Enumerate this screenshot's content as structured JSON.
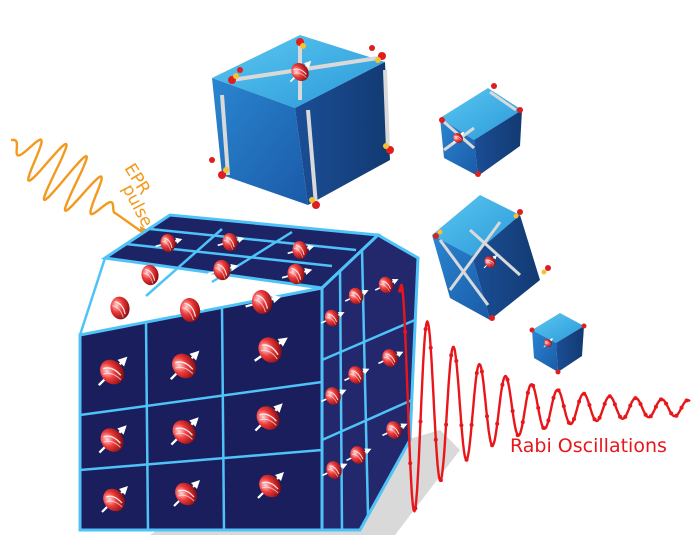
{
  "labels": {
    "epr_line1": "EPR",
    "epr_line2": "pulse",
    "rabi": "Rabi Oscillations"
  },
  "colors": {
    "pulse": "#f39a1e",
    "oscillation": "#e8161a",
    "cube_light": "#3fb0e6",
    "cube_mid": "#1f78c8",
    "cube_dark": "#163f86",
    "grid_cell": "#1b1e5c",
    "grid_line": "#4fc3f7",
    "spin": "#e8262a"
  },
  "icons": [
    "spin-sphere-icon",
    "spin-arrow-icon",
    "framework-linker-icon"
  ]
}
